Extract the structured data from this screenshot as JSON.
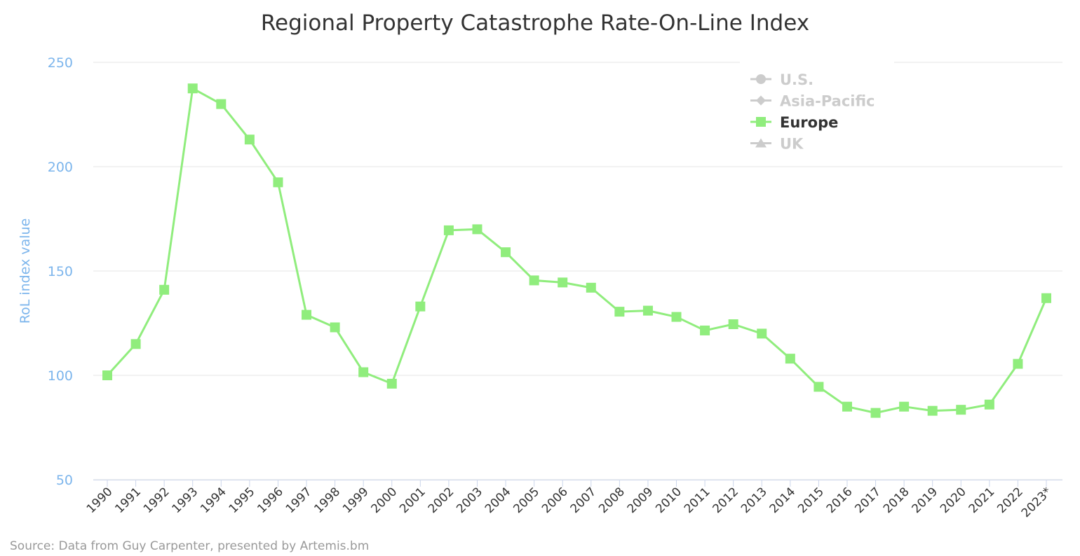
{
  "chart_data": {
    "type": "line",
    "title": "Regional Property Catastrophe Rate-On-Line Index",
    "ylabel": "RoL index value",
    "xlabel": "",
    "ylim": [
      50,
      250
    ],
    "yticks": [
      "50",
      "100",
      "150",
      "200",
      "250"
    ],
    "grid": true,
    "legend_position": "top-right",
    "categories": [
      "1990",
      "1991",
      "1992",
      "1993",
      "1994",
      "1995",
      "1996",
      "1997",
      "1998",
      "1999",
      "2000",
      "2001",
      "2002",
      "2003",
      "2004",
      "2005",
      "2006",
      "2007",
      "2008",
      "2009",
      "2010",
      "2011",
      "2012",
      "2013",
      "2014",
      "2015",
      "2016",
      "2017",
      "2018",
      "2019",
      "2020",
      "2021",
      "2022",
      "2023*"
    ],
    "legend": [
      {
        "name": "U.S.",
        "marker": "circle",
        "visible": false,
        "color": "#cccccc"
      },
      {
        "name": "Asia-Pacific",
        "marker": "diamond",
        "visible": false,
        "color": "#cccccc"
      },
      {
        "name": "Europe",
        "marker": "square",
        "visible": true,
        "color": "#90ed7d"
      },
      {
        "name": "UK",
        "marker": "triangle",
        "visible": false,
        "color": "#cccccc"
      }
    ],
    "series": [
      {
        "name": "Europe",
        "color": "#90ed7d",
        "values": [
          100,
          115,
          141,
          237.5,
          230,
          213,
          192.5,
          129,
          123,
          101.5,
          96,
          133,
          169.5,
          170,
          159,
          145.5,
          144.5,
          142,
          130.5,
          131,
          128,
          121.5,
          124.5,
          120,
          108,
          94.5,
          85,
          82,
          85,
          83,
          83.5,
          86,
          105.5,
          137
        ]
      }
    ],
    "source": "Source: Data from Guy Carpenter, presented by Artemis.bm"
  }
}
